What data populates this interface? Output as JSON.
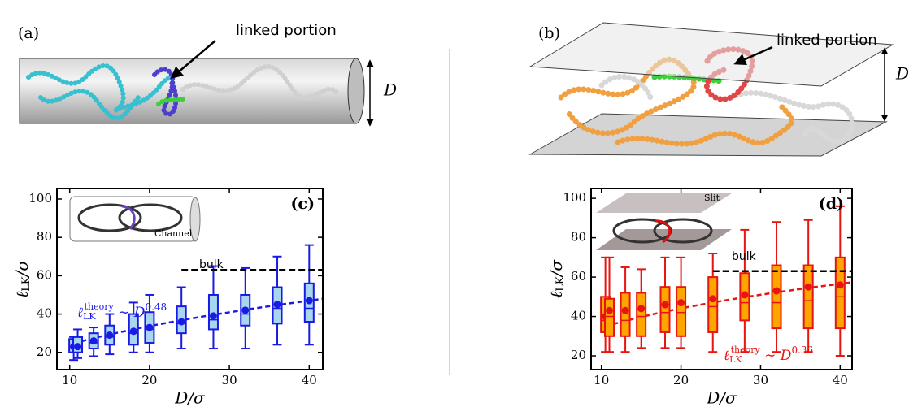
{
  "panels": {
    "a": {
      "label": "(a)",
      "annotation": "linked portion",
      "dimension": "D"
    },
    "b": {
      "label": "(b)",
      "annotation": "linked portion",
      "dimension": "D"
    }
  },
  "chart_data": [
    {
      "type": "box",
      "panel_label": "(c)",
      "inset_label": "Channel",
      "xlabel": "D/σ",
      "ylabel": {
        "symbol": "ℓ",
        "sub": "LK",
        "rest": "/σ"
      },
      "xlim": [
        8.4,
        41.7
      ],
      "ylim": [
        11,
        105.5
      ],
      "xticks": [
        10,
        20,
        30,
        40
      ],
      "yticks": [
        20,
        40,
        60,
        80,
        100
      ],
      "color": "#1a1ae6",
      "fill": "#a8d6ee",
      "x": [
        10.5,
        11,
        13,
        15,
        18,
        20,
        24,
        28,
        32,
        36,
        40
      ],
      "whisker_low": [
        16,
        17,
        18,
        19,
        20,
        20,
        22,
        22,
        22,
        24,
        24
      ],
      "q1": [
        20,
        20,
        22,
        24,
        24,
        25,
        30,
        32,
        34,
        35,
        36
      ],
      "median": [
        23,
        23,
        25,
        28,
        30,
        32,
        35,
        37,
        40,
        43,
        43
      ],
      "q3": [
        27,
        28,
        30,
        34,
        40,
        41,
        44,
        50,
        50,
        54,
        56
      ],
      "whisker_high": [
        28,
        32,
        33,
        40,
        46,
        50,
        54,
        65,
        64,
        70,
        76
      ],
      "mean": [
        23,
        23,
        26,
        29,
        31,
        33,
        36,
        39,
        42,
        45,
        47
      ],
      "bulk": {
        "label": "bulk",
        "value": 63,
        "from": 24,
        "to": 41.7
      },
      "fit_coefficient": 8.0,
      "theory_label": {
        "symbol": "ℓ",
        "sub": "LK",
        "sup": "theory",
        "relation": " ∼ D",
        "exponent": "0.48"
      }
    },
    {
      "type": "box",
      "panel_label": "(d)",
      "inset_label": "Slit",
      "xlabel": "D/σ",
      "ylabel": {
        "symbol": "ℓ",
        "sub": "LK",
        "rest": "/σ"
      },
      "xlim": [
        8.7,
        41.5
      ],
      "ylim": [
        13,
        105
      ],
      "xticks": [
        10,
        20,
        30,
        40
      ],
      "yticks": [
        20,
        40,
        60,
        80,
        100
      ],
      "color": "#e8140f",
      "fill": "#ffa500",
      "x": [
        10.5,
        11,
        13,
        15,
        18,
        20,
        24,
        28,
        32,
        36,
        40
      ],
      "whisker_low": [
        22,
        22,
        22,
        24,
        24,
        24,
        22,
        22,
        22,
        22,
        20
      ],
      "q1": [
        32,
        30,
        30,
        30,
        32,
        30,
        32,
        38,
        34,
        34,
        34
      ],
      "median": [
        38,
        40,
        38,
        40,
        42,
        42,
        45,
        47,
        47,
        48,
        50
      ],
      "q3": [
        50,
        49,
        52,
        52,
        55,
        55,
        60,
        62,
        66,
        66,
        70
      ],
      "whisker_high": [
        70,
        70,
        65,
        64,
        70,
        70,
        72,
        84,
        88,
        89,
        96
      ],
      "mean": [
        40,
        43,
        43,
        44,
        46,
        47,
        49,
        51,
        53,
        55,
        56
      ],
      "bulk": {
        "label": "bulk",
        "value": 63,
        "from": 24,
        "to": 41.5
      },
      "fit_coefficient": 15.0,
      "theory_label": {
        "symbol": "ℓ",
        "sub": "LK",
        "sup": "theory",
        "relation": " ∼ D",
        "exponent": "0.36"
      }
    }
  ]
}
